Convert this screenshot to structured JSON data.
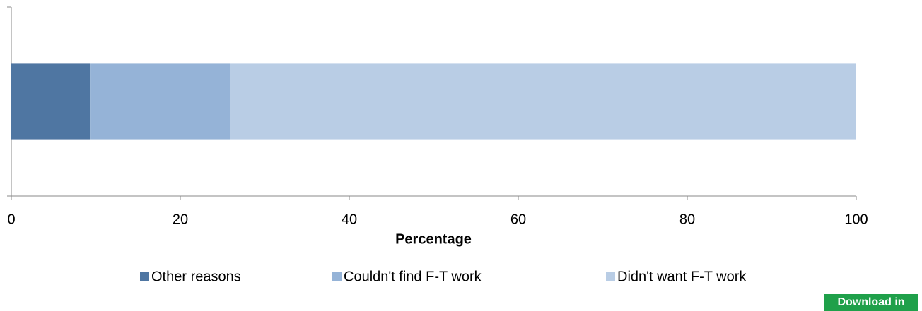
{
  "chart_data": {
    "type": "stacked-barh",
    "categories": [
      null
    ],
    "series": [
      {
        "name": "Other reasons",
        "color": "#4f76a2",
        "values": [
          9.3
        ]
      },
      {
        "name": "Couldn't find F-T work",
        "color": "#95b3d7",
        "values": [
          16.6
        ]
      },
      {
        "name": "Didn't want F-T work",
        "color": "#b9cde5",
        "values": [
          74.1
        ]
      }
    ],
    "xlabel": "Percentage",
    "xlim": [
      0,
      100
    ],
    "xticks": [
      0,
      20,
      40,
      60,
      80,
      100
    ],
    "grid": false,
    "legend": "bottom"
  },
  "ui": {
    "download_button": "Download in excel"
  }
}
